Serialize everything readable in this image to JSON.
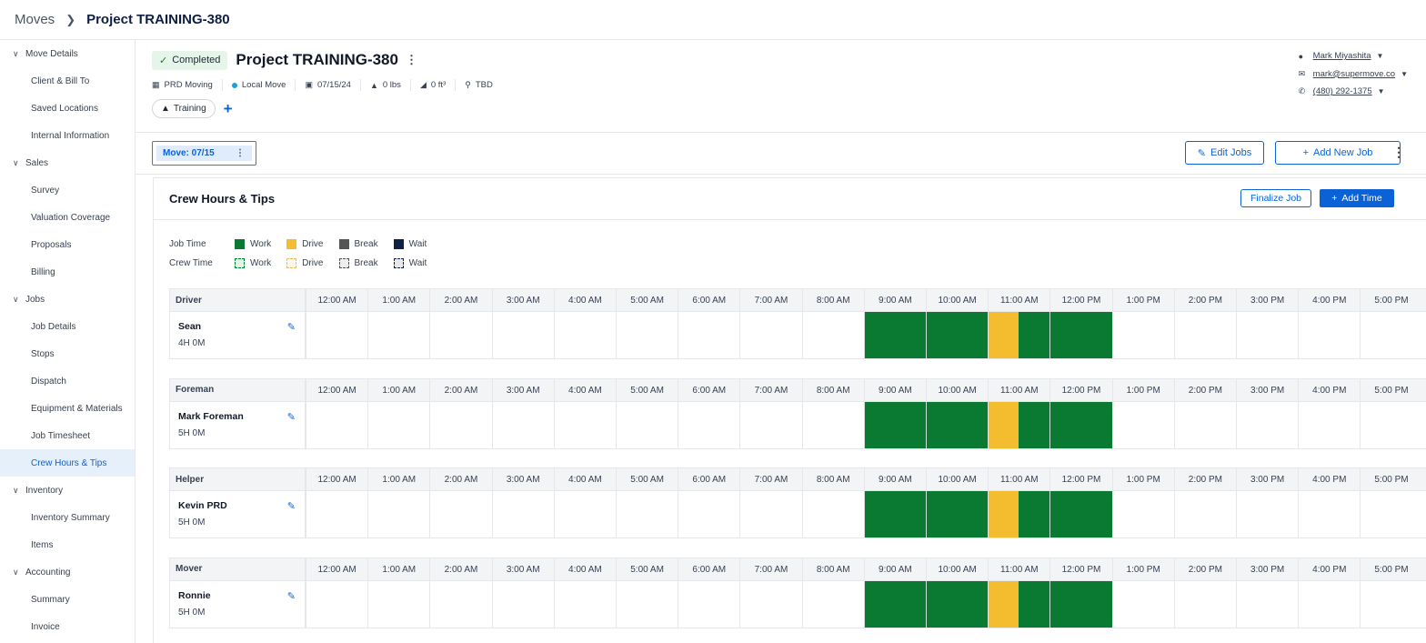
{
  "breadcrumb": {
    "root": "Moves",
    "current": "Project TRAINING-380"
  },
  "sidebar": [
    {
      "type": "section",
      "label": "Move Details"
    },
    {
      "type": "child",
      "label": "Client & Bill To"
    },
    {
      "type": "child",
      "label": "Saved Locations"
    },
    {
      "type": "child",
      "label": "Internal Information"
    },
    {
      "type": "section",
      "label": "Sales"
    },
    {
      "type": "child",
      "label": "Survey"
    },
    {
      "type": "child",
      "label": "Valuation Coverage"
    },
    {
      "type": "child",
      "label": "Proposals"
    },
    {
      "type": "child",
      "label": "Billing"
    },
    {
      "type": "section",
      "label": "Jobs"
    },
    {
      "type": "child",
      "label": "Job Details"
    },
    {
      "type": "child",
      "label": "Stops"
    },
    {
      "type": "child",
      "label": "Dispatch"
    },
    {
      "type": "child",
      "label": "Equipment & Materials"
    },
    {
      "type": "child",
      "label": "Job Timesheet"
    },
    {
      "type": "child",
      "label": "Crew Hours & Tips",
      "active": true
    },
    {
      "type": "section",
      "label": "Inventory"
    },
    {
      "type": "child",
      "label": "Inventory Summary"
    },
    {
      "type": "child",
      "label": "Items"
    },
    {
      "type": "section",
      "label": "Accounting"
    },
    {
      "type": "child",
      "label": "Summary"
    },
    {
      "type": "child",
      "label": "Invoice"
    }
  ],
  "project": {
    "status": "Completed",
    "title": "Project TRAINING-380",
    "company": "PRD Moving",
    "move_type": "Local Move",
    "date": "07/15/24",
    "weight": "0 lbs",
    "volume": "0 ft³",
    "location": "TBD",
    "tag": "Training"
  },
  "contact": {
    "name": "Mark Miyashita",
    "email": "mark@supermove.co",
    "phone": "(480) 292-1375"
  },
  "move_tab": "Move: 07/15",
  "buttons": {
    "edit_jobs": "Edit Jobs",
    "add_new_job": "Add New Job",
    "finalize_job": "Finalize Job",
    "add_time": "Add Time"
  },
  "card_title": "Crew Hours & Tips",
  "legend": {
    "job_time_label": "Job Time",
    "crew_time_label": "Crew Time",
    "items": [
      {
        "label": "Work",
        "color": "#0a7a32"
      },
      {
        "label": "Drive",
        "color": "#f4bd30"
      },
      {
        "label": "Break",
        "color": "#555555"
      },
      {
        "label": "Wait",
        "color": "#0f2246"
      }
    ]
  },
  "time_labels": [
    "12:00 AM",
    "1:00 AM",
    "2:00 AM",
    "3:00 AM",
    "4:00 AM",
    "5:00 AM",
    "6:00 AM",
    "7:00 AM",
    "8:00 AM",
    "9:00 AM",
    "10:00 AM",
    "11:00 AM",
    "12:00 PM",
    "1:00 PM",
    "2:00 PM",
    "3:00 PM",
    "4:00 PM",
    "5:00 PM"
  ],
  "crew": [
    {
      "role": "Driver",
      "name": "Sean",
      "hours": "4H 0M"
    },
    {
      "role": "Foreman",
      "name": "Mark Foreman",
      "hours": "5H 0M"
    },
    {
      "role": "Helper",
      "name": "Kevin PRD",
      "hours": "5H 0M"
    },
    {
      "role": "Mover",
      "name": "Ronnie",
      "hours": "5H 0M"
    }
  ],
  "job_segments": [
    {
      "kind": "Work",
      "start_hour": 9,
      "end_hour": 11
    },
    {
      "kind": "Drive",
      "start_hour": 11,
      "end_hour": 11.5
    },
    {
      "kind": "Work",
      "start_hour": 11.5,
      "end_hour": 13
    }
  ]
}
